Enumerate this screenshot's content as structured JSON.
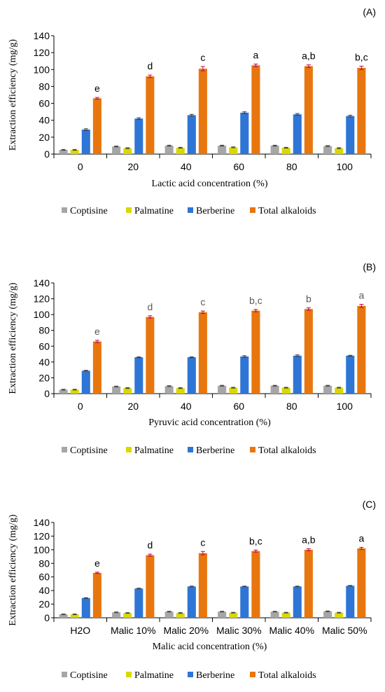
{
  "legend": {
    "items": [
      "Coptisine",
      "Palmatine",
      "Berberine",
      "Total alkaloids"
    ]
  },
  "chart_data": [
    {
      "type": "bar",
      "panel_label": "(A)",
      "ylabel": "Extraction efficiency (mg/g)",
      "xlabel": "Lactic acid concentration (%)",
      "ylim": [
        0,
        140
      ],
      "yticks": [
        "0",
        "20",
        "40",
        "60",
        "80",
        "100",
        "120",
        "140"
      ],
      "categories": [
        "0",
        "20",
        "40",
        "60",
        "80",
        "100"
      ],
      "series": [
        {
          "name": "Coptisine",
          "color": "#a6a6a6",
          "values": [
            5,
            9,
            10,
            10,
            10,
            9.5
          ],
          "errors": [
            0.5,
            0.5,
            0.5,
            0.5,
            0.5,
            0.5
          ]
        },
        {
          "name": "Palmatine",
          "color": "#d9d900",
          "values": [
            5,
            7,
            7.5,
            8,
            7.5,
            7
          ],
          "errors": [
            0.5,
            0.5,
            0.5,
            0.5,
            0.5,
            0.5
          ]
        },
        {
          "name": "Berberine",
          "color": "#2e75d6",
          "values": [
            29,
            42,
            46,
            49,
            47,
            45
          ],
          "errors": [
            1,
            1,
            1,
            1,
            1,
            1
          ]
        },
        {
          "name": "Total alkaloids",
          "color": "#e8760e",
          "values": [
            66,
            92,
            101,
            105,
            104,
            102
          ],
          "errors": [
            1,
            1.5,
            2.5,
            1.5,
            1.5,
            2
          ]
        }
      ],
      "significance": [
        "e",
        "d",
        "c",
        "a",
        "a,b",
        "b,c"
      ]
    },
    {
      "type": "bar",
      "panel_label": "(B)",
      "ylabel": "Extraction efficiency (mg/g)",
      "xlabel": "Pyruvic acid concentration (%)",
      "ylim": [
        0,
        140
      ],
      "yticks": [
        "0",
        "20",
        "40",
        "60",
        "80",
        "100",
        "120",
        "140"
      ],
      "categories": [
        "0",
        "20",
        "40",
        "60",
        "80",
        "100"
      ],
      "series": [
        {
          "name": "Coptisine",
          "color": "#a6a6a6",
          "values": [
            5,
            9,
            9.5,
            10,
            10,
            10
          ],
          "errors": [
            0.5,
            0.5,
            0.5,
            0.5,
            0.5,
            0.5
          ]
        },
        {
          "name": "Palmatine",
          "color": "#d9d900",
          "values": [
            5,
            7,
            7,
            7.5,
            7.5,
            7.5
          ],
          "errors": [
            0.5,
            0.5,
            0.5,
            0.5,
            0.5,
            0.5
          ]
        },
        {
          "name": "Berberine",
          "color": "#2e75d6",
          "values": [
            29,
            46,
            46,
            47,
            48,
            48
          ],
          "errors": [
            0.5,
            0.5,
            0.5,
            1,
            1,
            0.5
          ]
        },
        {
          "name": "Total alkaloids",
          "color": "#e8760e",
          "values": [
            66,
            97,
            103,
            105,
            107,
            111
          ],
          "errors": [
            1.5,
            1.5,
            1.5,
            1.5,
            1.5,
            2
          ]
        }
      ],
      "significance": [
        "e",
        "d",
        "c",
        "b,c",
        "b",
        "a"
      ]
    },
    {
      "type": "bar",
      "panel_label": "(C)",
      "ylabel": "Extraction efficiency (mg/g)",
      "xlabel": "Malic acid concentration (%)",
      "ylim": [
        0,
        140
      ],
      "yticks": [
        "0",
        "20",
        "40",
        "60",
        "80",
        "100",
        "120",
        "140"
      ],
      "categories": [
        "H2O",
        "Malic 10%",
        "Malic 20%",
        "Malic 30%",
        "Malic 40%",
        "Malic 50%"
      ],
      "series": [
        {
          "name": "Coptisine",
          "color": "#a6a6a6",
          "values": [
            5,
            8,
            9,
            9,
            9,
            9.5
          ],
          "errors": [
            0.5,
            0.5,
            0.5,
            0.5,
            0.5,
            0.5
          ]
        },
        {
          "name": "Palmatine",
          "color": "#d9d900",
          "values": [
            5,
            7,
            7,
            7.5,
            7.5,
            7.5
          ],
          "errors": [
            0.5,
            0.5,
            0.5,
            0.5,
            0.5,
            0.5
          ]
        },
        {
          "name": "Berberine",
          "color": "#2e75d6",
          "values": [
            29,
            43,
            46,
            46,
            46,
            47
          ],
          "errors": [
            0.5,
            0.5,
            0.5,
            0.5,
            0.5,
            0.5
          ]
        },
        {
          "name": "Total alkaloids",
          "color": "#e8760e",
          "values": [
            66,
            92,
            95,
            98,
            100,
            102
          ],
          "errors": [
            1,
            1.5,
            2.5,
            1.5,
            1.5,
            1.5
          ]
        }
      ],
      "significance": [
        "e",
        "d",
        "c",
        "b,c",
        "a,b",
        "a"
      ]
    }
  ]
}
